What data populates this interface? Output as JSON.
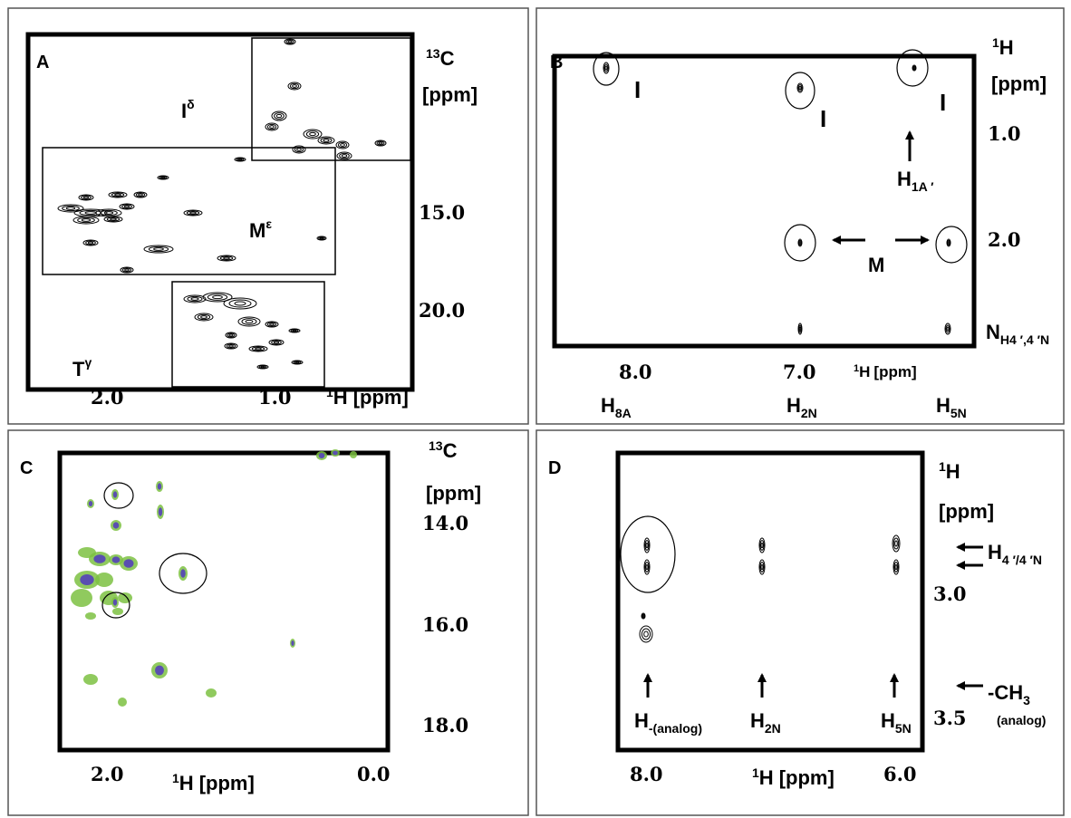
{
  "panels": [
    {
      "letter": "A",
      "y_axis": {
        "mass": "13",
        "nucleus": "C",
        "unit": "[ppm]",
        "ticks": [
          "15.0",
          "20.0"
        ]
      },
      "x_axis": {
        "mass": "1",
        "nucleus": "H",
        "unit": "[ppm]",
        "ticks": [
          "2.0",
          "1.0"
        ]
      },
      "regions": [
        {
          "label": "I",
          "sup": "δ"
        },
        {
          "label": "M",
          "sup": "ε"
        },
        {
          "label": "T",
          "sup": "γ"
        }
      ]
    },
    {
      "letter": "B",
      "y_axis": {
        "mass": "1",
        "nucleus": "H",
        "unit": "[ppm]",
        "ticks": [
          "1.0",
          "2.0"
        ],
        "extra": {
          "label": "N",
          "sub": "H4 ′,4 ′N"
        }
      },
      "x_axis": {
        "mass": "1",
        "nucleus": "H",
        "unit": "[ppm]",
        "ticks": [
          "8.0",
          "7.0"
        ]
      },
      "protons": [
        {
          "label": "H",
          "sub": "8A"
        },
        {
          "label": "H",
          "sub": "2N"
        },
        {
          "label": "H",
          "sub": "5N"
        }
      ],
      "annotations": [
        "I",
        "I",
        "I",
        "M"
      ],
      "arrow_label": {
        "label": "H",
        "sub": "1A ′"
      }
    },
    {
      "letter": "C",
      "y_axis": {
        "mass": "13",
        "nucleus": "C",
        "unit": "[ppm]",
        "ticks": [
          "14.0",
          "16.0",
          "18.0"
        ]
      },
      "x_axis": {
        "mass": "1",
        "nucleus": "H",
        "unit": "[ppm]",
        "ticks": [
          "2.0",
          "0.0"
        ]
      }
    },
    {
      "letter": "D",
      "y_axis": {
        "mass": "1",
        "nucleus": "H",
        "unit": "[ppm]",
        "ticks": [
          "3.0",
          "3.5"
        ]
      },
      "x_axis": {
        "mass": "1",
        "nucleus": "H",
        "unit": "[ppm]",
        "ticks": [
          "8.0",
          "6.0"
        ]
      },
      "protons": [
        {
          "label": "H",
          "sub": "-(analog)"
        },
        {
          "label": "H",
          "sub": "2N"
        },
        {
          "label": "H",
          "sub": "5N"
        }
      ],
      "side_labels": [
        {
          "label": "H",
          "sub": "4 ′/4 ′N"
        },
        {
          "label": "-CH",
          "sub": "3",
          "note": "(analog)"
        }
      ]
    }
  ]
}
